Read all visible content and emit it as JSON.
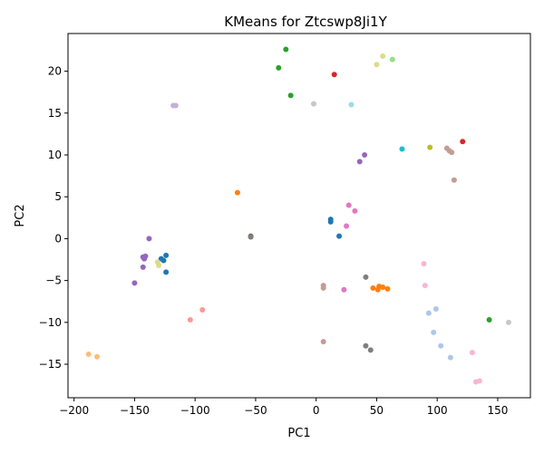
{
  "chart_data": {
    "type": "scatter",
    "title": "KMeans for Ztcswp8Ji1Y",
    "xlabel": "PC1",
    "ylabel": "PC2",
    "xlim": [
      -205,
      177
    ],
    "ylim": [
      -19,
      24.5
    ],
    "xticks": [
      -200,
      -150,
      -100,
      -50,
      0,
      50,
      100,
      150
    ],
    "yticks": [
      -15,
      -10,
      -5,
      0,
      5,
      10,
      15,
      20
    ],
    "grid": false,
    "points": [
      {
        "x": -25,
        "y": 22.6,
        "color": "#2ca02c"
      },
      {
        "x": -31,
        "y": 20.4,
        "color": "#2ca02c"
      },
      {
        "x": -21,
        "y": 17.1,
        "color": "#2ca02c"
      },
      {
        "x": 15,
        "y": 19.6,
        "color": "#d62728"
      },
      {
        "x": 55,
        "y": 21.8,
        "color": "#dbdb8d"
      },
      {
        "x": 63,
        "y": 21.4,
        "color": "#98df8a"
      },
      {
        "x": 50,
        "y": 20.8,
        "color": "#dbdb8d"
      },
      {
        "x": -118,
        "y": 15.9,
        "color": "#c5b0d5"
      },
      {
        "x": -116,
        "y": 15.9,
        "color": "#c5b0d5"
      },
      {
        "x": -2,
        "y": 16.1,
        "color": "#c7c7c7"
      },
      {
        "x": 29,
        "y": 16.0,
        "color": "#9edae5"
      },
      {
        "x": 40,
        "y": 10.0,
        "color": "#9467bd"
      },
      {
        "x": 36,
        "y": 9.2,
        "color": "#9467bd"
      },
      {
        "x": 71,
        "y": 10.7,
        "color": "#17becf"
      },
      {
        "x": 94,
        "y": 10.9,
        "color": "#bcbd22"
      },
      {
        "x": 108,
        "y": 10.8,
        "color": "#c49c94"
      },
      {
        "x": 110,
        "y": 10.5,
        "color": "#c49c94"
      },
      {
        "x": 112,
        "y": 10.3,
        "color": "#c49c94"
      },
      {
        "x": 121,
        "y": 11.6,
        "color": "#d62728"
      },
      {
        "x": 114,
        "y": 7.0,
        "color": "#c49c94"
      },
      {
        "x": -65,
        "y": 5.5,
        "color": "#ff7f0e"
      },
      {
        "x": 27,
        "y": 4.0,
        "color": "#e377c2"
      },
      {
        "x": 32,
        "y": 3.3,
        "color": "#e377c2"
      },
      {
        "x": 12,
        "y": 2.3,
        "color": "#1f77b4"
      },
      {
        "x": 12,
        "y": 2.0,
        "color": "#1f77b4"
      },
      {
        "x": 25,
        "y": 1.5,
        "color": "#e377c2"
      },
      {
        "x": 19,
        "y": 0.3,
        "color": "#1f77b4"
      },
      {
        "x": -54,
        "y": 0.3,
        "color": "#8c564b"
      },
      {
        "x": -54,
        "y": 0.2,
        "color": "#7f7f7f"
      },
      {
        "x": -138,
        "y": 0.0,
        "color": "#9467bd"
      },
      {
        "x": -124,
        "y": -2.0,
        "color": "#1f77b4"
      },
      {
        "x": -143,
        "y": -2.2,
        "color": "#9467bd"
      },
      {
        "x": -141,
        "y": -2.1,
        "color": "#9467bd"
      },
      {
        "x": -142,
        "y": -2.4,
        "color": "#9467bd"
      },
      {
        "x": -128,
        "y": -2.4,
        "color": "#1f77b4"
      },
      {
        "x": -126,
        "y": -2.6,
        "color": "#1f77b4"
      },
      {
        "x": -131,
        "y": -2.8,
        "color": "#dbdb8d"
      },
      {
        "x": -130,
        "y": -3.2,
        "color": "#dbdb8d"
      },
      {
        "x": -143,
        "y": -3.4,
        "color": "#9467bd"
      },
      {
        "x": -124,
        "y": -4.0,
        "color": "#1f77b4"
      },
      {
        "x": -150,
        "y": -5.3,
        "color": "#9467bd"
      },
      {
        "x": 6,
        "y": -5.6,
        "color": "#c49c94"
      },
      {
        "x": 6,
        "y": -5.9,
        "color": "#c49c94"
      },
      {
        "x": 23,
        "y": -6.1,
        "color": "#e377c2"
      },
      {
        "x": 41,
        "y": -4.6,
        "color": "#7f7f7f"
      },
      {
        "x": 47,
        "y": -5.9,
        "color": "#ff7f0e"
      },
      {
        "x": 51,
        "y": -6.1,
        "color": "#ff7f0e"
      },
      {
        "x": 52,
        "y": -5.7,
        "color": "#ff7f0e"
      },
      {
        "x": 55,
        "y": -5.8,
        "color": "#ff7f0e"
      },
      {
        "x": 59,
        "y": -6.0,
        "color": "#ff7f0e"
      },
      {
        "x": 89,
        "y": -3.0,
        "color": "#f7b6d2"
      },
      {
        "x": 90,
        "y": -5.6,
        "color": "#f7b6d2"
      },
      {
        "x": 93,
        "y": -8.9,
        "color": "#aec7e8"
      },
      {
        "x": 99,
        "y": -8.4,
        "color": "#aec7e8"
      },
      {
        "x": 97,
        "y": -11.2,
        "color": "#aec7e8"
      },
      {
        "x": 103,
        "y": -12.8,
        "color": "#aec7e8"
      },
      {
        "x": 111,
        "y": -14.2,
        "color": "#aec7e8"
      },
      {
        "x": 143,
        "y": -9.7,
        "color": "#2ca02c"
      },
      {
        "x": 159,
        "y": -10.0,
        "color": "#c7c7c7"
      },
      {
        "x": 129,
        "y": -13.6,
        "color": "#f7b6d2"
      },
      {
        "x": 132,
        "y": -17.1,
        "color": "#f7b6d2"
      },
      {
        "x": 135,
        "y": -17.0,
        "color": "#f7b6d2"
      },
      {
        "x": -94,
        "y": -8.5,
        "color": "#ff9896"
      },
      {
        "x": -104,
        "y": -9.7,
        "color": "#ff9896"
      },
      {
        "x": 6,
        "y": -12.3,
        "color": "#c49c94"
      },
      {
        "x": 41,
        "y": -12.8,
        "color": "#7f7f7f"
      },
      {
        "x": 45,
        "y": -13.3,
        "color": "#7f7f7f"
      },
      {
        "x": -188,
        "y": -13.8,
        "color": "#ffbb78"
      },
      {
        "x": -181,
        "y": -14.1,
        "color": "#ffbb78"
      }
    ]
  }
}
